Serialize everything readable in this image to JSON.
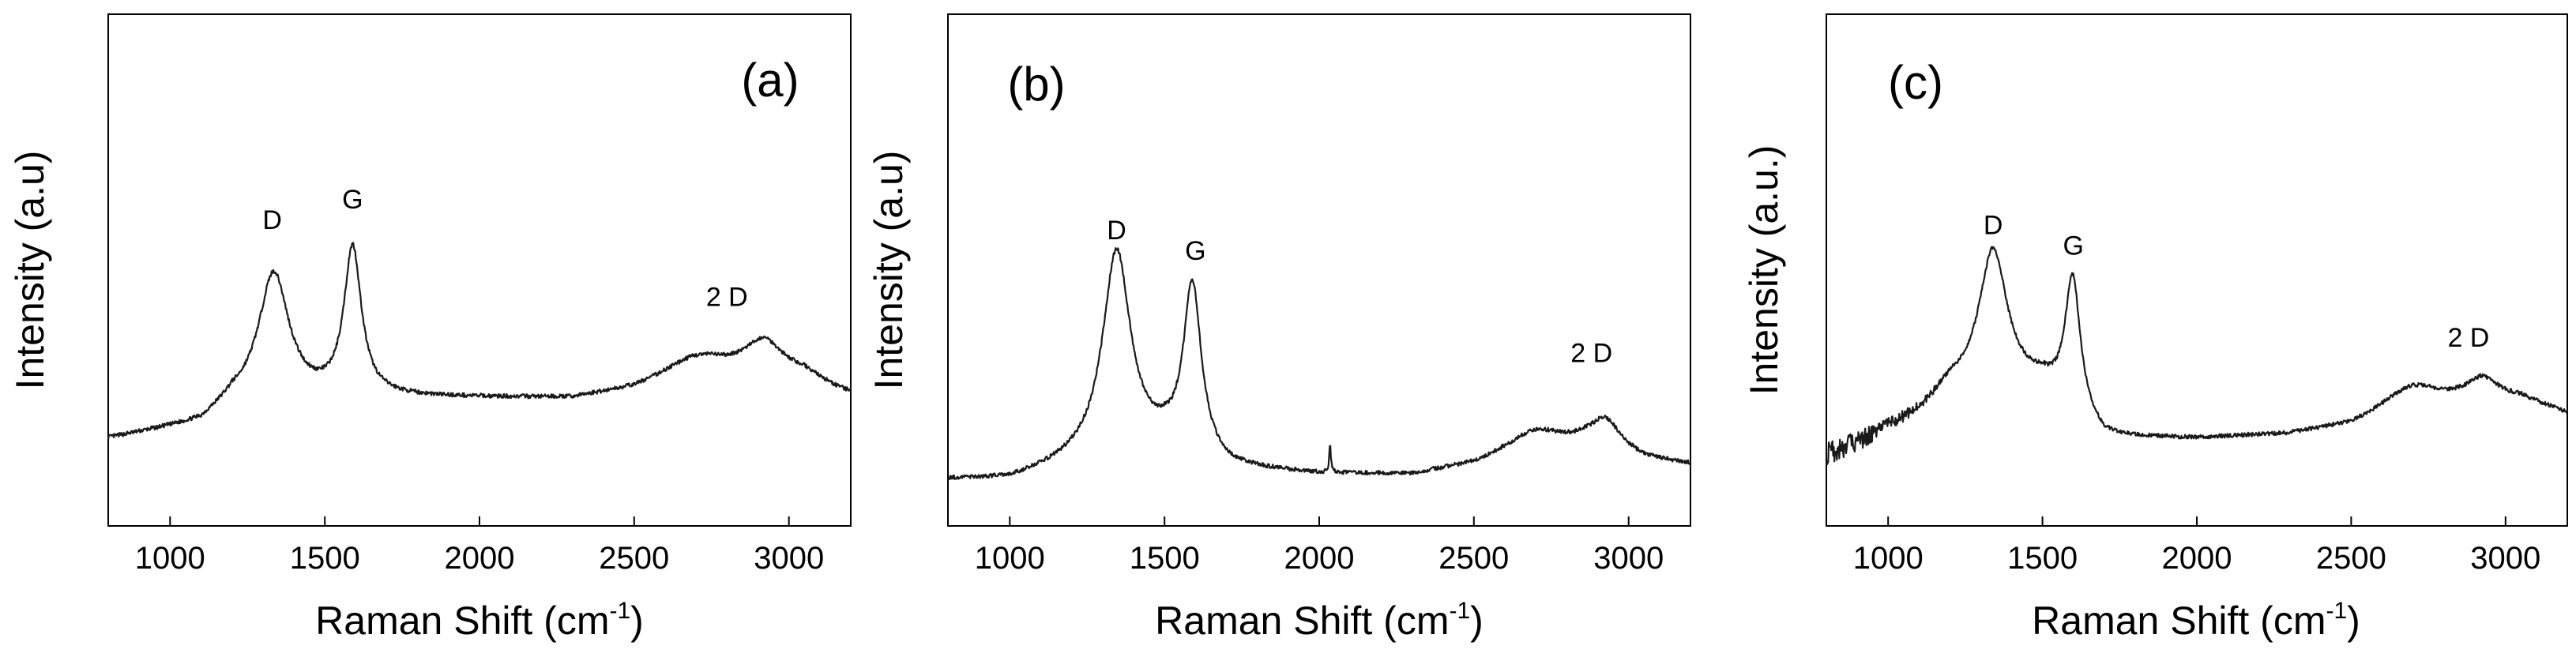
{
  "chart_data": [
    {
      "type": "line",
      "panel": "(a)",
      "xlabel": "Raman Shift (cm",
      "xlabel_sup": "-1",
      "xlabel_end": ")",
      "ylabel": "Intensity (a.u)",
      "xlim": [
        800,
        3200
      ],
      "ylim": [
        0,
        1
      ],
      "xticks": [
        1000,
        1500,
        2000,
        2500,
        3000
      ],
      "xtick_labels": [
        "1000",
        "1500",
        "2000",
        "2500",
        "3000"
      ],
      "annotations": [
        {
          "text": "D",
          "x": 1330,
          "y": 0.58
        },
        {
          "text": "G",
          "x": 1590,
          "y": 0.62
        },
        {
          "text": "2 D",
          "x": 2800,
          "y": 0.43
        }
      ],
      "baseline": [
        [
          800,
          0.17
        ],
        [
          1100,
          0.2
        ],
        [
          1200,
          0.24
        ],
        [
          1700,
          0.25
        ],
        [
          2300,
          0.25
        ],
        [
          2500,
          0.27
        ],
        [
          2600,
          0.29
        ],
        [
          2750,
          0.31
        ],
        [
          2840,
          0.31
        ],
        [
          3050,
          0.3
        ],
        [
          3150,
          0.27
        ],
        [
          3200,
          0.26
        ]
      ],
      "peaks": [
        {
          "center": 1335,
          "height": 0.25,
          "width": 60
        },
        {
          "center": 1590,
          "height": 0.29,
          "width": 34
        },
        {
          "center": 2690,
          "height": 0.025,
          "width": 90
        },
        {
          "center": 2920,
          "height": 0.058,
          "width": 70
        }
      ],
      "noise": 0.004,
      "spikes": []
    },
    {
      "type": "line",
      "panel": "(b)",
      "xlabel": "Raman Shift (cm",
      "xlabel_sup": "-1",
      "xlabel_end": ")",
      "ylabel": "Intensity (a.u)",
      "xlim": [
        800,
        3200
      ],
      "ylim": [
        0,
        1
      ],
      "xticks": [
        1000,
        1500,
        2000,
        2500,
        3000
      ],
      "xtick_labels": [
        "1000",
        "1500",
        "2000",
        "2500",
        "3000"
      ],
      "annotations": [
        {
          "text": "D",
          "x": 1345,
          "y": 0.56
        },
        {
          "text": "G",
          "x": 1600,
          "y": 0.52
        },
        {
          "text": "2 D",
          "x": 2880,
          "y": 0.32
        }
      ],
      "baseline": [
        [
          800,
          0.09
        ],
        [
          1000,
          0.09
        ],
        [
          1200,
          0.12
        ],
        [
          1500,
          0.15
        ],
        [
          1700,
          0.11
        ],
        [
          2000,
          0.1
        ],
        [
          2300,
          0.1
        ],
        [
          2500,
          0.12
        ],
        [
          2600,
          0.14
        ],
        [
          2750,
          0.16
        ],
        [
          2860,
          0.16
        ],
        [
          3050,
          0.13
        ],
        [
          3200,
          0.12
        ]
      ],
      "peaks": [
        {
          "center": 1345,
          "height": 0.4,
          "width": 55
        },
        {
          "center": 1590,
          "height": 0.33,
          "width": 35
        },
        {
          "center": 2690,
          "height": 0.03,
          "width": 90
        },
        {
          "center": 2925,
          "height": 0.058,
          "width": 60
        }
      ],
      "noise": 0.004,
      "spikes": [
        {
          "center": 2035,
          "height": 0.06,
          "width": 3
        }
      ]
    },
    {
      "type": "line",
      "panel": "(c)",
      "xlabel": "Raman Shift (cm",
      "xlabel_sup": "-1",
      "xlabel_end": ")",
      "ylabel": "Intensity (a.u.)",
      "xlim": [
        800,
        3200
      ],
      "ylim": [
        0,
        1
      ],
      "xticks": [
        1000,
        1500,
        2000,
        2500,
        3000
      ],
      "xtick_labels": [
        "1000",
        "1500",
        "2000",
        "2500",
        "3000"
      ],
      "annotations": [
        {
          "text": "D",
          "x": 1340,
          "y": 0.57
        },
        {
          "text": "G",
          "x": 1600,
          "y": 0.53
        },
        {
          "text": "2 D",
          "x": 2880,
          "y": 0.35
        }
      ],
      "baseline": [
        [
          800,
          0.14
        ],
        [
          900,
          0.16
        ],
        [
          1000,
          0.19
        ],
        [
          1100,
          0.22
        ],
        [
          1200,
          0.27
        ],
        [
          1500,
          0.27
        ],
        [
          1700,
          0.17
        ],
        [
          2000,
          0.17
        ],
        [
          2300,
          0.18
        ],
        [
          2500,
          0.2
        ],
        [
          2620,
          0.23
        ],
        [
          2750,
          0.25
        ],
        [
          2860,
          0.25
        ],
        [
          3050,
          0.25
        ],
        [
          3200,
          0.22
        ]
      ],
      "peaks": [
        {
          "center": 1340,
          "height": 0.27,
          "width": 55
        },
        {
          "center": 1598,
          "height": 0.26,
          "width": 30
        },
        {
          "center": 2690,
          "height": 0.03,
          "width": 80
        },
        {
          "center": 2925,
          "height": 0.04,
          "width": 60
        }
      ],
      "noise": 0.004,
      "noisy_start_until": 1200,
      "noisy_amplitude": 0.02,
      "spikes": []
    }
  ]
}
